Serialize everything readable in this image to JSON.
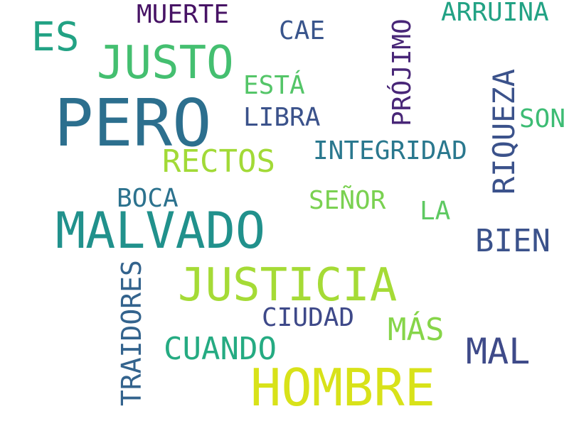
{
  "words": [
    {
      "text": "PERO",
      "color": "#2c6f8e"
    },
    {
      "text": "MALVADO",
      "color": "#21918c"
    },
    {
      "text": "HOMBRE",
      "color": "#d8e219"
    },
    {
      "text": "JUSTICIA",
      "color": "#a5db36"
    },
    {
      "text": "JUSTO",
      "color": "#44bf70"
    },
    {
      "text": "MAL",
      "color": "#3e4a89"
    },
    {
      "text": "ES",
      "color": "#22a284"
    },
    {
      "text": "RIQUEZA",
      "color": "#3b528b"
    },
    {
      "text": "BIEN",
      "color": "#3b528b"
    },
    {
      "text": "RECTOS",
      "color": "#a2da37"
    },
    {
      "text": "CUANDO",
      "color": "#25ab82"
    },
    {
      "text": "TRAIDORES",
      "color": "#33638d"
    },
    {
      "text": "PRÓJIMO",
      "color": "#482677"
    },
    {
      "text": "MÁS",
      "color": "#86d549"
    },
    {
      "text": "CIUDAD",
      "color": "#3e4989"
    },
    {
      "text": "INTEGRIDAD",
      "color": "#2a788e"
    },
    {
      "text": "MUERTE",
      "color": "#471365"
    },
    {
      "text": "ARRUINA",
      "color": "#22a284"
    },
    {
      "text": "CAE",
      "color": "#39558c"
    },
    {
      "text": "ESTÁ",
      "color": "#54c568"
    },
    {
      "text": "LIBRA",
      "color": "#3b528b"
    },
    {
      "text": "SON",
      "color": "#3dbc74"
    },
    {
      "text": "BOCA",
      "color": "#2c728e"
    },
    {
      "text": "SEÑOR",
      "color": "#7ad151"
    },
    {
      "text": "LA",
      "color": "#5ec962"
    }
  ]
}
